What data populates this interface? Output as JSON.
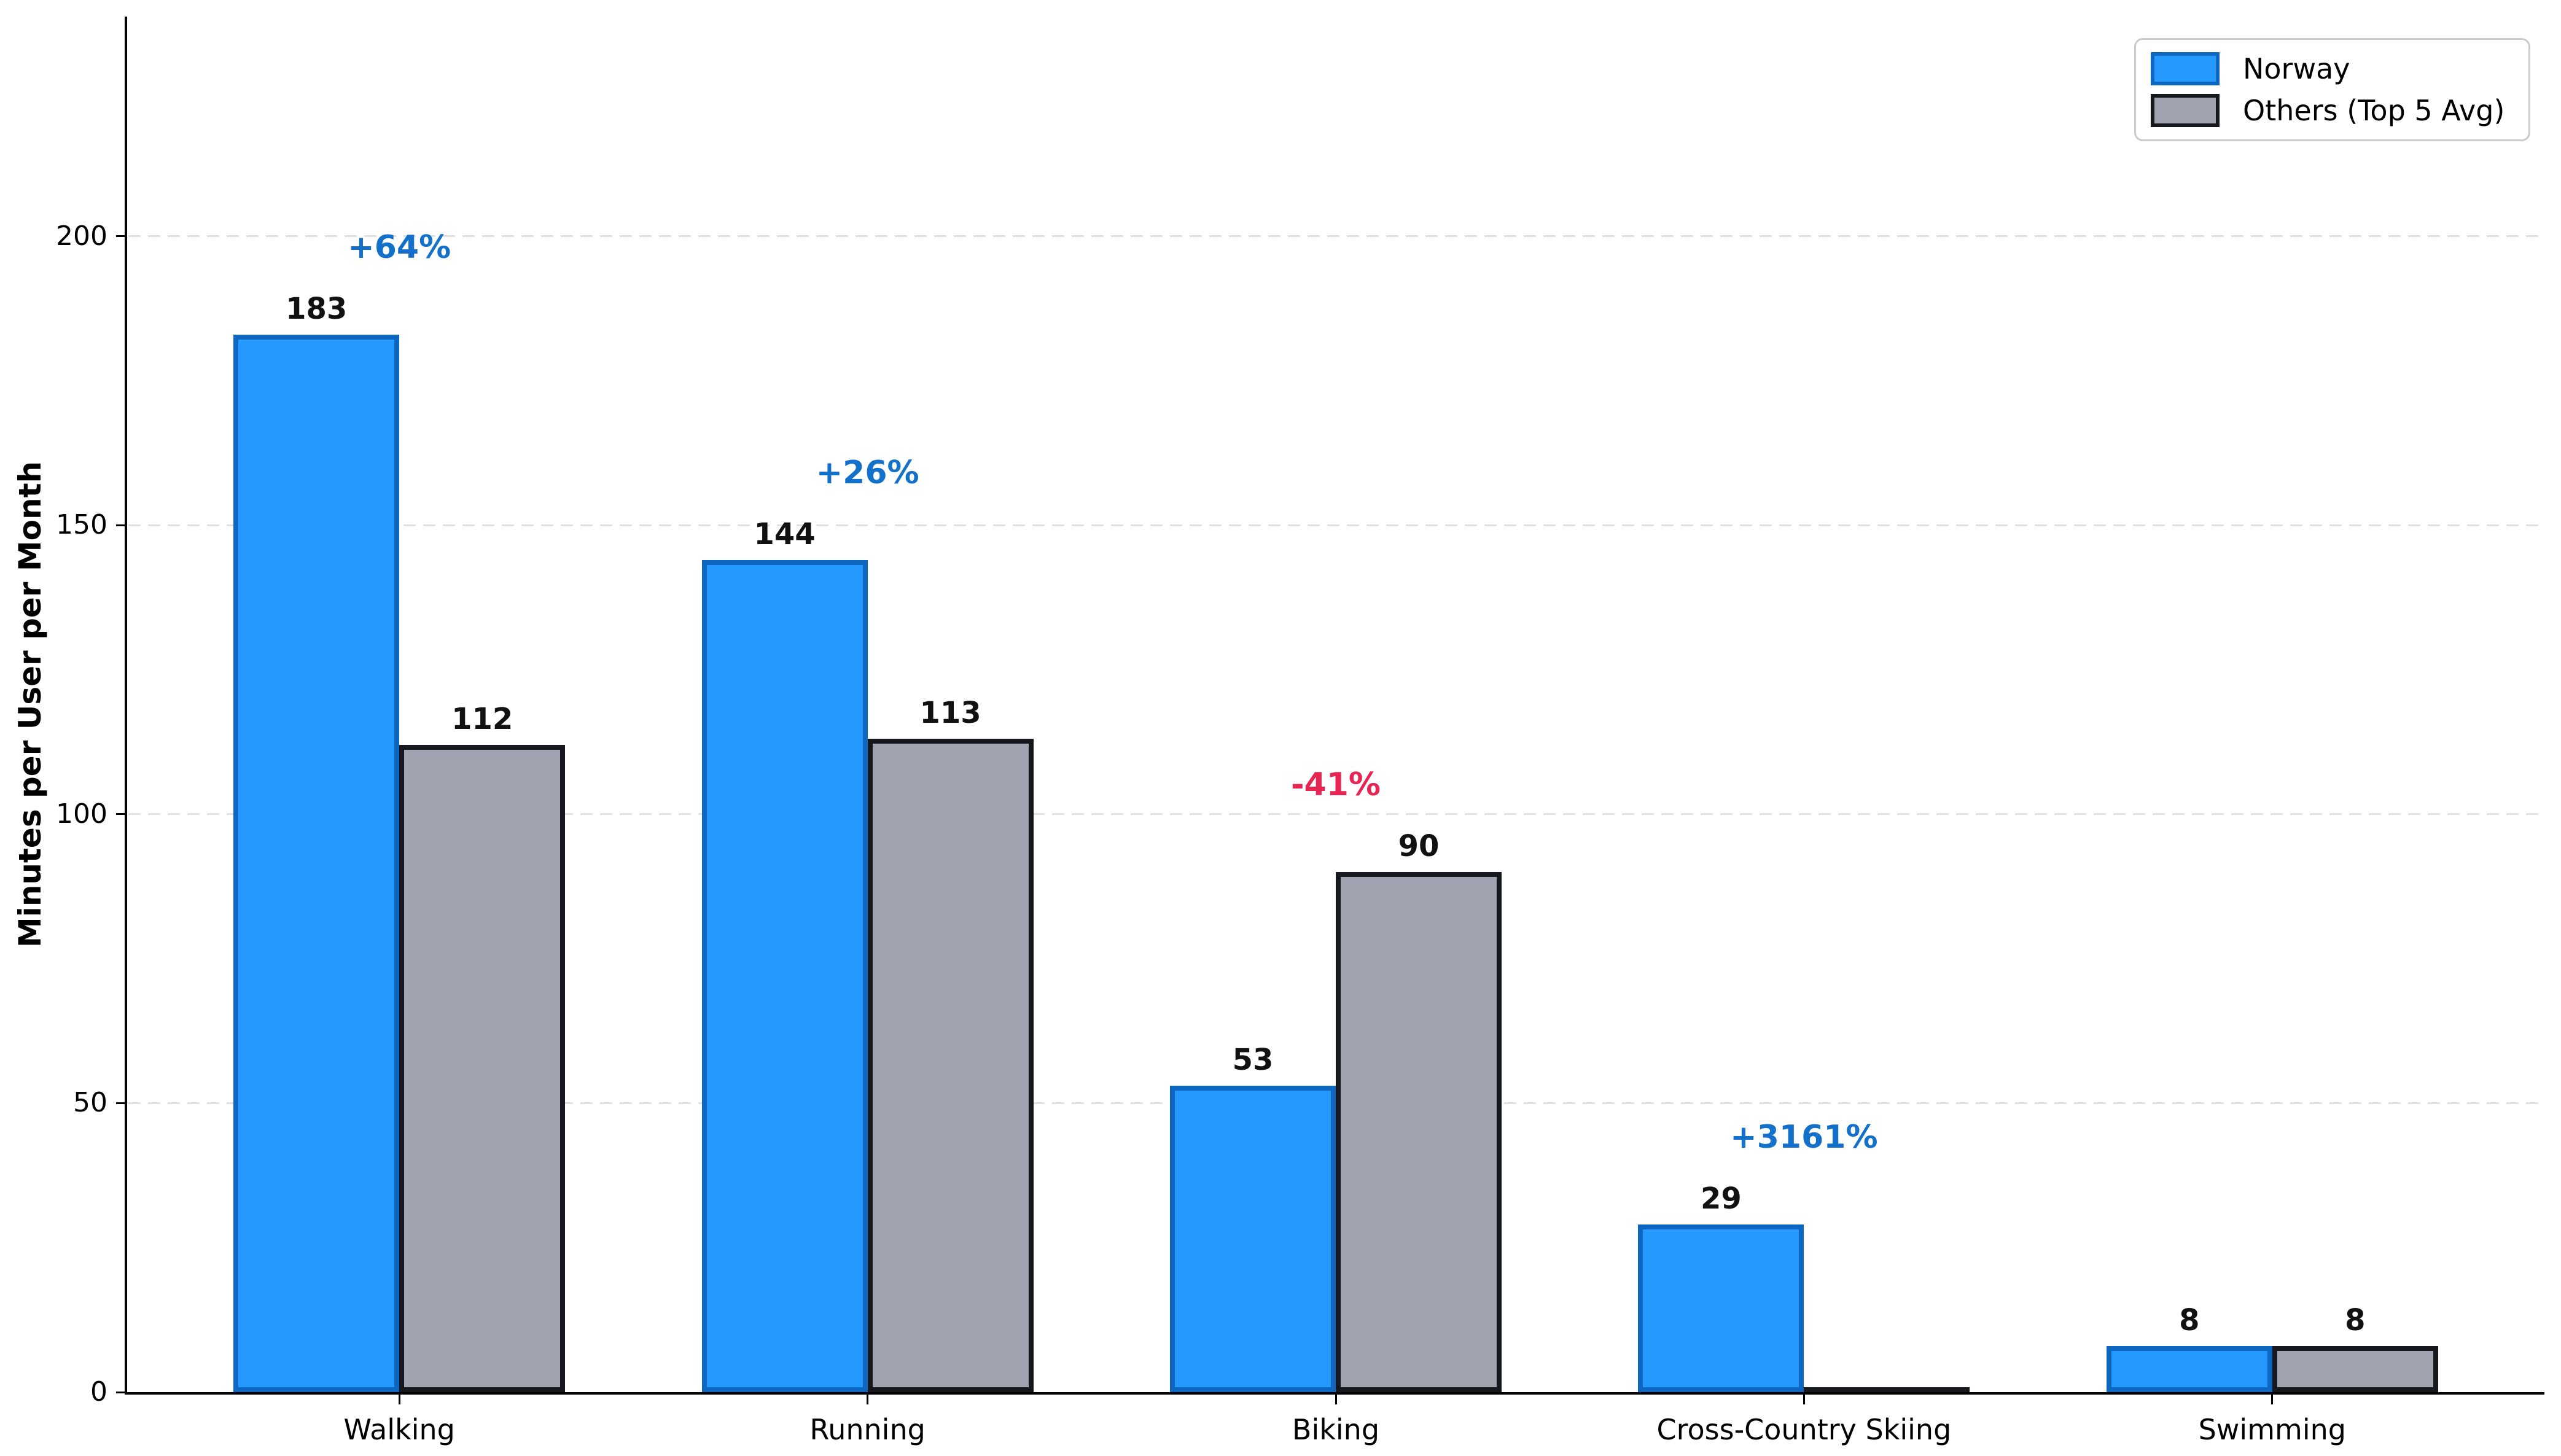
{
  "figure": {
    "background": "#ffffff"
  },
  "chart_data": {
    "type": "bar",
    "title": "",
    "xlabel": "",
    "ylabel": "Minutes per User per Month",
    "categories": [
      "Walking",
      "Running",
      "Biking",
      "Cross-Country Skiing",
      "Swimming"
    ],
    "series": [
      {
        "name": "Norway",
        "fill": "#2699FF",
        "edge": "#0D67C0",
        "values": [
          183,
          144,
          53,
          29,
          8
        ],
        "labels": [
          "183",
          "144",
          "53",
          "29",
          "8"
        ]
      },
      {
        "name": "Others (Top 5 Avg)",
        "fill": "#A0A3B0",
        "edge": "#17181D",
        "values": [
          112,
          113,
          90,
          0.9,
          8
        ],
        "labels": [
          "112",
          "113",
          "90",
          "",
          "8"
        ]
      }
    ],
    "annotations": [
      {
        "text": "+64%",
        "color": "#1371CC"
      },
      {
        "text": "+26%",
        "color": "#1371CC"
      },
      {
        "text": "-41%",
        "color": "#E72553"
      },
      {
        "text": "+3161%",
        "color": "#1371CC"
      },
      null
    ],
    "ylim": [
      0,
      238
    ],
    "yticks": [
      {
        "value": 0,
        "label": "0"
      },
      {
        "value": 50,
        "label": "50"
      },
      {
        "value": 100,
        "label": "100"
      },
      {
        "value": 150,
        "label": "150"
      },
      {
        "value": 200,
        "label": "200"
      }
    ],
    "grid": {
      "axis": "y",
      "style": "dashed",
      "color": "#E0E0E0"
    },
    "legend_position": "upper right",
    "value_label_color": "#111111"
  }
}
